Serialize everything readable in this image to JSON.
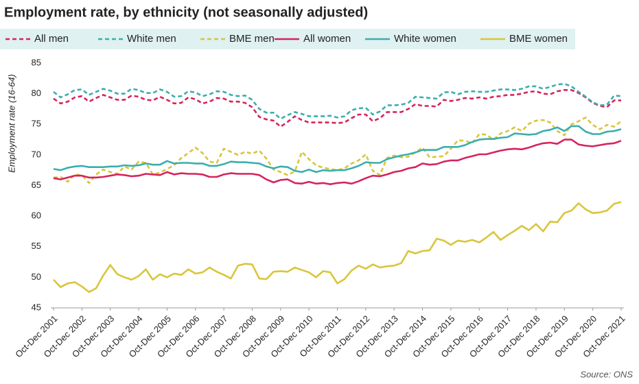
{
  "chart_data": {
    "type": "line",
    "title": "Employment rate, by ethnicity (not seasonally adjusted)",
    "y_label": "Employment rate (16-64)",
    "source": "Source: ONS",
    "categories": [
      "Oct-Dec 2001",
      null,
      null,
      null,
      "Oct-Dec 2002",
      null,
      null,
      null,
      "Oct-Dec 2003",
      null,
      null,
      null,
      "Oct-Dec 2004",
      null,
      null,
      null,
      "Oct-Dec 2005",
      null,
      null,
      null,
      "Oct-Dec 2006",
      null,
      null,
      null,
      "Oct-Dec 2007",
      null,
      null,
      null,
      "Oct-Dec 2008",
      null,
      null,
      null,
      "Oct-Dec 2009",
      null,
      null,
      null,
      "Oct-Dec 2010",
      null,
      null,
      null,
      "Oct-Dec 2011",
      null,
      null,
      null,
      "Oct-Dec 2012",
      null,
      null,
      null,
      "Oct-Dec 2013",
      null,
      null,
      null,
      "Oct-Dec 2014",
      null,
      null,
      null,
      "Oct-Dec 2015",
      null,
      null,
      null,
      "Oct-Dec 2016",
      null,
      null,
      null,
      "Oct-Dec 2017",
      null,
      null,
      null,
      "Oct-Dec 2018",
      null,
      null,
      null,
      "Oct-Dec 2019",
      null,
      null,
      null,
      "Oct-Dec 2020",
      null,
      null,
      null,
      "Oct-Dec 2021"
    ],
    "series": [
      {
        "name": "All men",
        "color": "#d6245a",
        "dashed": true,
        "values": [
          79.2,
          78.4,
          78.7,
          79.4,
          79.6,
          78.7,
          79.3,
          79.8,
          79.4,
          79.0,
          79.0,
          79.7,
          79.5,
          79.0,
          78.9,
          79.5,
          79.0,
          78.4,
          78.5,
          79.4,
          79.1,
          78.4,
          78.7,
          79.3,
          79.2,
          78.7,
          78.7,
          78.5,
          77.8,
          76.2,
          75.8,
          75.6,
          74.6,
          75.4,
          76.3,
          75.7,
          75.3,
          75.3,
          75.3,
          75.3,
          75.2,
          75.3,
          76.0,
          76.6,
          76.6,
          75.5,
          76.0,
          77.0,
          77.0,
          77.0,
          77.5,
          78.3,
          78.0,
          78.0,
          77.9,
          79.0,
          78.8,
          79.0,
          79.3,
          79.2,
          79.4,
          79.2,
          79.5,
          79.6,
          79.8,
          79.8,
          80.0,
          80.3,
          80.4,
          80.0,
          79.9,
          80.4,
          80.6,
          80.6,
          80.1,
          79.4,
          78.5,
          78.0,
          77.8,
          78.9,
          78.9
        ]
      },
      {
        "name": "White men",
        "color": "#3aaead",
        "dashed": true,
        "values": [
          80.3,
          79.4,
          79.9,
          80.6,
          80.7,
          79.8,
          80.3,
          80.8,
          80.5,
          80.0,
          80.0,
          80.8,
          80.6,
          80.1,
          80.1,
          80.7,
          80.3,
          79.5,
          79.6,
          80.4,
          80.2,
          79.6,
          79.9,
          80.4,
          80.3,
          79.8,
          79.6,
          79.7,
          79.0,
          77.5,
          76.9,
          76.9,
          75.9,
          76.5,
          77.0,
          76.7,
          76.3,
          76.3,
          76.3,
          76.4,
          76.1,
          76.3,
          77.3,
          77.6,
          77.7,
          76.6,
          77.1,
          78.1,
          78.1,
          78.2,
          78.5,
          79.5,
          79.4,
          79.3,
          79.2,
          80.2,
          80.3,
          79.9,
          80.3,
          80.4,
          80.3,
          80.3,
          80.5,
          80.7,
          80.7,
          80.6,
          80.8,
          81.2,
          81.2,
          80.8,
          81.1,
          81.5,
          81.6,
          81.2,
          80.3,
          79.5,
          78.6,
          78.1,
          78.2,
          79.7,
          79.6
        ]
      },
      {
        "name": "BME men",
        "color": "#d9c53a",
        "dashed": true,
        "values": [
          66.3,
          66.4,
          65.6,
          66.8,
          66.7,
          65.4,
          66.8,
          67.6,
          67.2,
          66.9,
          68.1,
          67.6,
          68.9,
          68.7,
          66.8,
          67.1,
          67.7,
          68.3,
          69.5,
          70.3,
          71.2,
          70.3,
          68.9,
          68.7,
          71.0,
          70.5,
          70.0,
          70.5,
          70.2,
          70.7,
          69.4,
          67.6,
          67.2,
          66.7,
          67.3,
          70.5,
          69.3,
          68.3,
          67.9,
          67.7,
          67.5,
          67.8,
          68.6,
          69.1,
          70.1,
          67.4,
          66.7,
          69.5,
          69.9,
          69.6,
          69.7,
          70.4,
          71.2,
          69.6,
          69.7,
          69.8,
          71.0,
          72.4,
          72.3,
          71.9,
          73.4,
          73.3,
          72.5,
          73.5,
          73.9,
          74.5,
          73.9,
          75.1,
          75.6,
          75.7,
          75.3,
          73.9,
          73.2,
          75.0,
          75.5,
          76.1,
          74.9,
          74.2,
          74.9,
          74.6,
          75.5
        ]
      },
      {
        "name": "All women",
        "color": "#d6245a",
        "dashed": false,
        "values": [
          66.2,
          66.0,
          66.3,
          66.6,
          66.6,
          66.3,
          66.3,
          66.4,
          66.6,
          66.8,
          66.7,
          66.5,
          66.6,
          66.9,
          66.8,
          66.7,
          67.2,
          66.8,
          67.0,
          66.9,
          66.9,
          66.8,
          66.4,
          66.4,
          66.8,
          67.0,
          66.9,
          66.9,
          66.9,
          66.7,
          66.0,
          65.5,
          65.9,
          66.0,
          65.4,
          65.3,
          65.6,
          65.3,
          65.4,
          65.2,
          65.4,
          65.5,
          65.3,
          65.7,
          66.2,
          66.6,
          66.5,
          66.8,
          67.2,
          67.4,
          67.8,
          68.0,
          68.6,
          68.4,
          68.5,
          68.9,
          69.1,
          69.1,
          69.5,
          69.8,
          70.1,
          70.1,
          70.4,
          70.7,
          70.9,
          71.0,
          70.9,
          71.2,
          71.6,
          71.9,
          72.0,
          71.8,
          72.5,
          72.5,
          71.7,
          71.5,
          71.4,
          71.6,
          71.8,
          71.9,
          72.3
        ]
      },
      {
        "name": "White women",
        "color": "#3aaead",
        "dashed": false,
        "values": [
          67.7,
          67.5,
          67.9,
          68.1,
          68.2,
          68.0,
          68.0,
          68.0,
          68.1,
          68.1,
          68.3,
          68.2,
          68.3,
          68.6,
          68.4,
          68.4,
          69.0,
          68.6,
          68.7,
          68.7,
          68.6,
          68.6,
          68.2,
          68.2,
          68.5,
          68.9,
          68.8,
          68.8,
          68.7,
          68.6,
          68.1,
          67.8,
          68.1,
          68.0,
          67.4,
          67.2,
          67.6,
          67.2,
          67.5,
          67.4,
          67.5,
          67.5,
          67.8,
          68.2,
          68.8,
          68.7,
          68.7,
          69.3,
          69.6,
          69.9,
          70.1,
          70.4,
          70.8,
          70.8,
          70.8,
          71.3,
          71.3,
          71.3,
          71.6,
          72.1,
          72.5,
          72.6,
          72.6,
          72.8,
          72.9,
          73.5,
          73.4,
          73.3,
          73.4,
          73.9,
          74.1,
          74.5,
          73.9,
          74.7,
          74.7,
          73.8,
          73.4,
          73.4,
          73.8,
          73.9,
          74.2
        ]
      },
      {
        "name": "BME women",
        "color": "#d9c53a",
        "dashed": false,
        "values": [
          49.6,
          48.4,
          49.0,
          49.2,
          48.5,
          47.6,
          48.2,
          50.3,
          52.0,
          50.5,
          50.0,
          49.6,
          50.2,
          51.3,
          49.6,
          50.5,
          50.0,
          50.6,
          50.4,
          51.3,
          50.6,
          50.8,
          51.6,
          50.9,
          50.4,
          49.8,
          51.9,
          52.2,
          52.1,
          49.8,
          49.7,
          50.9,
          51.0,
          50.9,
          51.6,
          51.2,
          50.8,
          50.0,
          51.0,
          50.8,
          49.0,
          49.7,
          51.1,
          51.9,
          51.4,
          52.1,
          51.6,
          51.8,
          51.9,
          52.3,
          54.3,
          53.9,
          54.3,
          54.4,
          56.3,
          56.0,
          55.3,
          56.0,
          55.8,
          56.1,
          55.7,
          56.5,
          57.4,
          56.1,
          56.9,
          57.6,
          58.4,
          57.7,
          58.7,
          57.5,
          59.1,
          59.0,
          60.5,
          60.9,
          62.1,
          61.1,
          60.5,
          60.6,
          60.9,
          62.0,
          62.3
        ]
      }
    ],
    "ylim": [
      45,
      85
    ],
    "yticks": [
      45,
      50,
      55,
      60,
      65,
      70,
      75,
      80,
      85
    ],
    "grid": false,
    "legend": "top"
  }
}
